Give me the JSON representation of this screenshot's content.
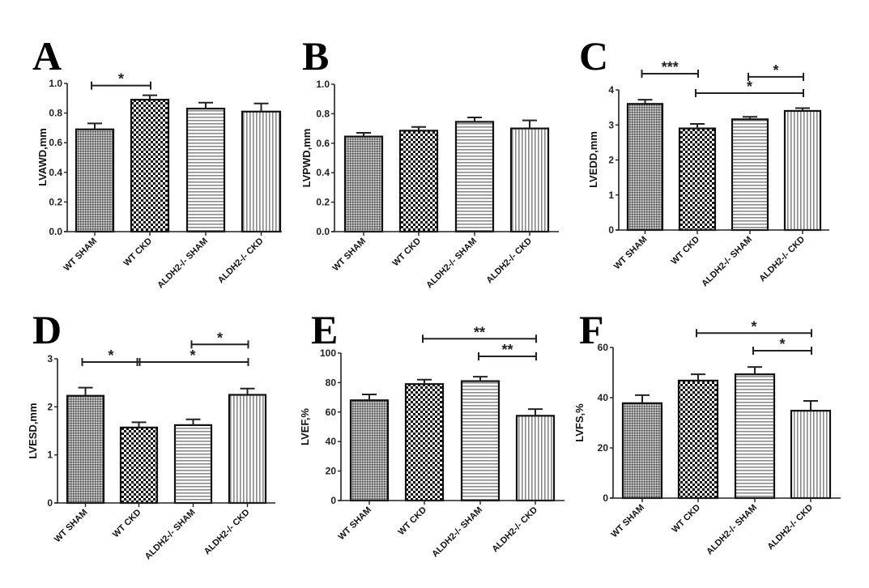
{
  "figure": {
    "categories": [
      "WT SHAM",
      "WT CKD",
      "ALDH2-/- SHAM",
      "ALDH2-/- CKD"
    ],
    "fill_patterns": [
      "fine-gray-dots",
      "checkerboard",
      "horizontal-stripes",
      "vertical-stripes"
    ],
    "colors": {
      "bar_outline": "#111111",
      "axis": "#222222",
      "pattern_dark": "#111111",
      "pattern_gray": "#8a8a8a",
      "background": "#ffffff"
    }
  },
  "chart_data": [
    {
      "panel": "A",
      "type": "bar",
      "title": "",
      "ylabel": "LVAWD,mm",
      "xlabel": "",
      "categories": [
        "WT SHAM",
        "WT CKD",
        "ALDH2-/- SHAM",
        "ALDH2-/- CKD"
      ],
      "values": [
        0.69,
        0.89,
        0.83,
        0.81
      ],
      "error_upper": [
        0.73,
        0.92,
        0.87,
        0.865
      ],
      "ylim": [
        0,
        1.0
      ],
      "yticks": [
        0,
        0.2,
        0.4,
        0.6,
        0.8,
        1.0
      ],
      "ytick_labels": [
        "0.0",
        "0.2",
        "0.4",
        "0.6",
        "0.8",
        "1.0"
      ],
      "grid": false,
      "significance": [
        {
          "from": 0,
          "to": 1,
          "label": "*",
          "level": 0
        }
      ]
    },
    {
      "panel": "B",
      "type": "bar",
      "title": "",
      "ylabel": "LVPWD,mm",
      "xlabel": "",
      "categories": [
        "WT SHAM",
        "WT CKD",
        "ALDH2-/- SHAM",
        "ALDH2-/- CKD"
      ],
      "values": [
        0.645,
        0.685,
        0.745,
        0.7
      ],
      "error_upper": [
        0.67,
        0.71,
        0.775,
        0.755
      ],
      "ylim": [
        0,
        1.0
      ],
      "yticks": [
        0,
        0.2,
        0.4,
        0.6,
        0.8,
        1.0
      ],
      "ytick_labels": [
        "0.0",
        "0.2",
        "0.4",
        "0.6",
        "0.8",
        "1.0"
      ],
      "grid": false,
      "significance": []
    },
    {
      "panel": "C",
      "type": "bar",
      "title": "",
      "ylabel": "LVEDD,mm",
      "xlabel": "",
      "categories": [
        "WT SHAM",
        "WT CKD",
        "ALDH2-/- SHAM",
        "ALDH2-/- CKD"
      ],
      "values": [
        3.6,
        2.9,
        3.16,
        3.4
      ],
      "error_upper": [
        3.72,
        3.03,
        3.23,
        3.48
      ],
      "ylim": [
        0,
        4
      ],
      "yticks": [
        0,
        1,
        2,
        3,
        4
      ],
      "ytick_labels": [
        "0",
        "1",
        "2",
        "3",
        "4"
      ],
      "grid": false,
      "significance": [
        {
          "from": 0,
          "to": 1,
          "label": "***",
          "level": 1
        },
        {
          "from": 2,
          "to": 3,
          "label": "*",
          "level": 1
        },
        {
          "from": 1,
          "to": 3,
          "label": "*",
          "level": 0
        }
      ]
    },
    {
      "panel": "D",
      "type": "bar",
      "title": "",
      "ylabel": "LVESD,mm",
      "xlabel": "",
      "categories": [
        "WT SHAM",
        "WT CKD",
        "ALDH2-/- SHAM",
        "ALDH2-/- CKD"
      ],
      "values": [
        2.23,
        1.57,
        1.62,
        2.25
      ],
      "error_upper": [
        2.4,
        1.68,
        1.74,
        2.38
      ],
      "ylim": [
        0,
        3
      ],
      "yticks": [
        0,
        1,
        2,
        3
      ],
      "ytick_labels": [
        "0",
        "1",
        "2",
        "3"
      ],
      "grid": false,
      "significance": [
        {
          "from": 0,
          "to": 1,
          "label": "*",
          "level": 0
        },
        {
          "from": 1,
          "to": 3,
          "label": "*",
          "level": 0
        },
        {
          "from": 2,
          "to": 3,
          "label": "*",
          "level": 1
        }
      ]
    },
    {
      "panel": "E",
      "type": "bar",
      "title": "",
      "ylabel": "LVEF,%",
      "xlabel": "",
      "categories": [
        "WT SHAM",
        "WT CKD",
        "ALDH2-/- SHAM",
        "ALDH2-/- CKD"
      ],
      "values": [
        68,
        79,
        81,
        57.5
      ],
      "error_upper": [
        72,
        82,
        84,
        62
      ],
      "ylim": [
        0,
        100
      ],
      "yticks": [
        0,
        20,
        40,
        60,
        80,
        100
      ],
      "ytick_labels": [
        "0",
        "20",
        "40",
        "60",
        "80",
        "100"
      ],
      "grid": false,
      "significance": [
        {
          "from": 1,
          "to": 3,
          "label": "**",
          "level": 1
        },
        {
          "from": 2,
          "to": 3,
          "label": "**",
          "level": 0
        }
      ]
    },
    {
      "panel": "F",
      "type": "bar",
      "title": "",
      "ylabel": "LVFS,%",
      "xlabel": "",
      "categories": [
        "WT SHAM",
        "WT CKD",
        "ALDH2-/- SHAM",
        "ALDH2-/- CKD"
      ],
      "values": [
        37.8,
        46.8,
        49.3,
        34.8
      ],
      "error_upper": [
        41,
        49.3,
        52.2,
        38.7
      ],
      "ylim": [
        0,
        60
      ],
      "yticks": [
        0,
        20,
        40,
        60
      ],
      "ytick_labels": [
        "0",
        "20",
        "40",
        "60"
      ],
      "grid": false,
      "significance": [
        {
          "from": 1,
          "to": 3,
          "label": "*",
          "level": 1
        },
        {
          "from": 2,
          "to": 3,
          "label": "*",
          "level": 0
        }
      ]
    }
  ]
}
